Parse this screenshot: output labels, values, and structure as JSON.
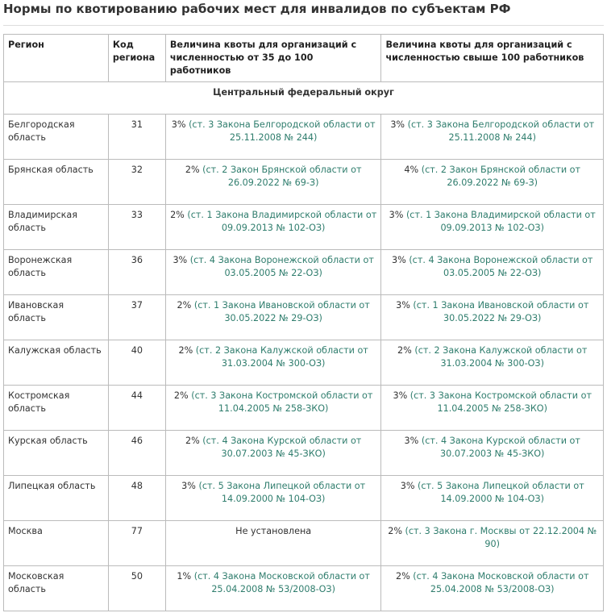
{
  "header": {
    "title": "Нормы по квотированию рабочих мест для инвалидов по субъектам РФ"
  },
  "table": {
    "columns": [
      "Регион",
      "Код региона",
      "Величина квоты для организаций с численностью от 35 до 100 работников",
      "Величина квоты для организаций с численностью свыше 100 работников"
    ],
    "section": "Центральный федеральный округ",
    "rows": [
      [
        "Белгородская область",
        "31",
        {
          "value": "3%",
          "source": "(ст. 3 Закона Белгородской области от 25.11.2008 № 244)"
        },
        {
          "value": "3%",
          "source": "(ст. 3 Закона Белгородской области от 25.11.2008 № 244)"
        }
      ],
      [
        "Брянская область",
        "32",
        {
          "value": "2%",
          "source": "(ст. 2 Закон Брянской области от 26.09.2022 № 69-З)"
        },
        {
          "value": "4%",
          "source": "(ст. 2 Закон Брянской области от 26.09.2022 № 69-З)"
        }
      ],
      [
        "Владимирская область",
        "33",
        {
          "value": "2%",
          "source": "(ст. 1 Закона Владимирской области от 09.09.2013 № 102-ОЗ)"
        },
        {
          "value": "3%",
          "source": "(ст. 1 Закона Владимирской области от 09.09.2013 № 102-ОЗ)"
        }
      ],
      [
        "Воронежская область",
        "36",
        {
          "value": "3%",
          "source": "(ст. 4 Закона Воронежской области от 03.05.2005 № 22-ОЗ)"
        },
        {
          "value": "3%",
          "source": "(ст. 4 Закона Воронежской области от 03.05.2005 № 22-ОЗ)"
        }
      ],
      [
        "Ивановская область",
        "37",
        {
          "value": "2%",
          "source": "(ст. 1 Закона Ивановской области от 30.05.2022 № 29-ОЗ)"
        },
        {
          "value": "3%",
          "source": "(ст. 1 Закона Ивановской области от 30.05.2022 № 29-ОЗ)"
        }
      ],
      [
        "Калужская область",
        "40",
        {
          "value": "2%",
          "source": "(ст. 2 Закона Калужской области от 31.03.2004 № 300-ОЗ)"
        },
        {
          "value": "2%",
          "source": "(ст. 2 Закона Калужской области от 31.03.2004 № 300-ОЗ)"
        }
      ],
      [
        "Костромская область",
        "44",
        {
          "value": "2%",
          "source": "(ст. 3 Закона Костромской области от 11.04.2005 № 258-ЗКО)"
        },
        {
          "value": "3%",
          "source": "(ст. 3 Закона Костромской области от 11.04.2005 № 258-ЗКО)"
        }
      ],
      [
        "Курская область",
        "46",
        {
          "value": "2%",
          "source": "(ст. 4 Закона Курской области от 30.07.2003 № 45-ЗКО)"
        },
        {
          "value": "3%",
          "source": "(ст. 4 Закона Курской области от 30.07.2003 № 45-ЗКО)"
        }
      ],
      [
        "Липецкая область",
        "48",
        {
          "value": "3%",
          "source": "(ст. 5 Закона Липецкой области от 14.09.2000 № 104-ОЗ)"
        },
        {
          "value": "3%",
          "source": "(ст. 5 Закона Липецкой области от 14.09.2000 № 104-ОЗ)"
        }
      ],
      [
        "Москва",
        "77",
        {
          "value": "Не установлена"
        },
        {
          "value": "2%",
          "source": "(ст. 3 Закона г. Москвы от 22.12.2004 № 90)"
        }
      ],
      [
        "Московская область",
        "50",
        {
          "value": "1%",
          "source": "(ст. 4 Закона Московской области от 25.04.2008 № 53/2008-ОЗ)"
        },
        {
          "value": "2%",
          "source": "(ст. 4 Закона Московской области от 25.04.2008 № 53/2008-ОЗ)"
        }
      ]
    ]
  }
}
